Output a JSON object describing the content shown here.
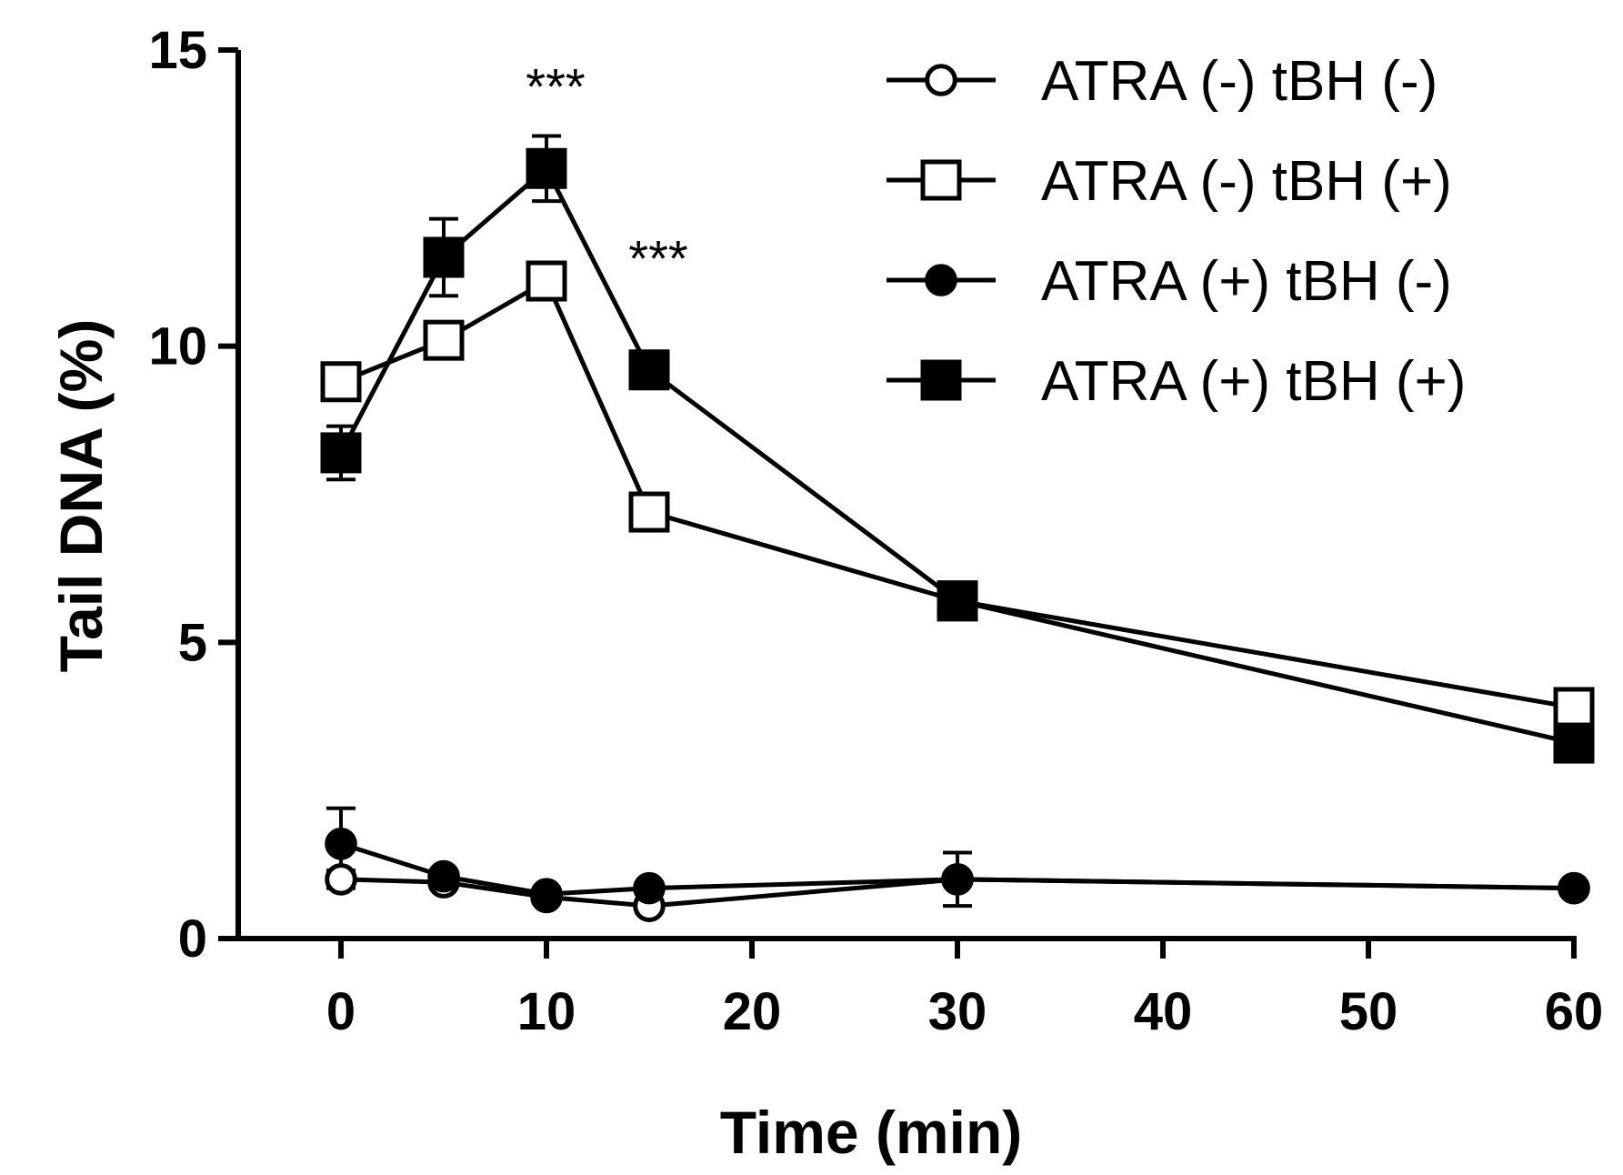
{
  "chart_data": {
    "type": "line",
    "title": "",
    "xlabel": "Time (min)",
    "ylabel": "Tail DNA (%)",
    "xlim": [
      -5,
      60
    ],
    "ylim": [
      0,
      15
    ],
    "xticks": [
      0,
      10,
      20,
      30,
      40,
      50,
      60
    ],
    "yticks": [
      0,
      5,
      10,
      15
    ],
    "x": [
      0,
      5,
      10,
      15,
      30,
      60
    ],
    "legend_position": "top-right",
    "series": [
      {
        "name": "ATRA (-) tBH (-)",
        "marker": "circle",
        "filled": false,
        "values": [
          1.0,
          0.95,
          0.7,
          0.55,
          1.0,
          0.85
        ],
        "errors": [
          0.15,
          0.1,
          0.1,
          0.1,
          0.45,
          0.1
        ]
      },
      {
        "name": "ATRA (-) tBH (+)",
        "marker": "square",
        "filled": false,
        "values": [
          9.4,
          10.1,
          11.1,
          7.2,
          5.7,
          3.9
        ],
        "errors": [
          0.25,
          0.2,
          0.15,
          0.15,
          0.1,
          0.1
        ]
      },
      {
        "name": "ATRA (+) tBH (-)",
        "marker": "circle",
        "filled": true,
        "values": [
          1.6,
          1.05,
          0.75,
          0.85,
          1.0,
          0.85
        ],
        "errors": [
          0.6,
          0.1,
          0.1,
          0.1,
          0.1,
          0.1
        ]
      },
      {
        "name": "ATRA (+) tBH (+)",
        "marker": "square",
        "filled": true,
        "values": [
          8.2,
          11.5,
          13.0,
          9.6,
          5.7,
          3.3
        ],
        "errors": [
          0.45,
          0.65,
          0.55,
          0.2,
          0.1,
          0.1
        ]
      }
    ],
    "annotations": [
      {
        "text": "***",
        "x": 10,
        "y": 14.7
      },
      {
        "text": "***",
        "x": 15,
        "y": 11.8
      }
    ]
  }
}
